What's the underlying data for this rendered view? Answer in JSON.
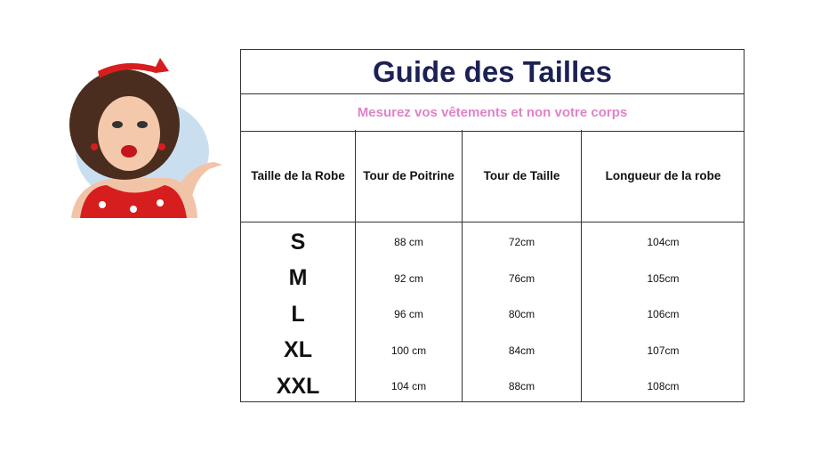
{
  "title": "Guide des Tailles",
  "subtitle": "Mesurez vos vêtements et non votre corps",
  "colors": {
    "title": "#1c2155",
    "subtitle": "#e083c8"
  },
  "illustration": "pin-up-woman-presenting",
  "headers": [
    "Taille de la Robe",
    "Tour de Poitrine",
    "Tour de Taille",
    "Longueur de la robe"
  ],
  "rows": [
    [
      "S",
      "88 cm",
      "72cm",
      "104cm"
    ],
    [
      "M",
      "92 cm",
      "76cm",
      "105cm"
    ],
    [
      "L",
      "96 cm",
      "80cm",
      "106cm"
    ],
    [
      "XL",
      "100 cm",
      "84cm",
      "107cm"
    ],
    [
      "XXL",
      "104 cm",
      "88cm",
      "108cm"
    ]
  ]
}
